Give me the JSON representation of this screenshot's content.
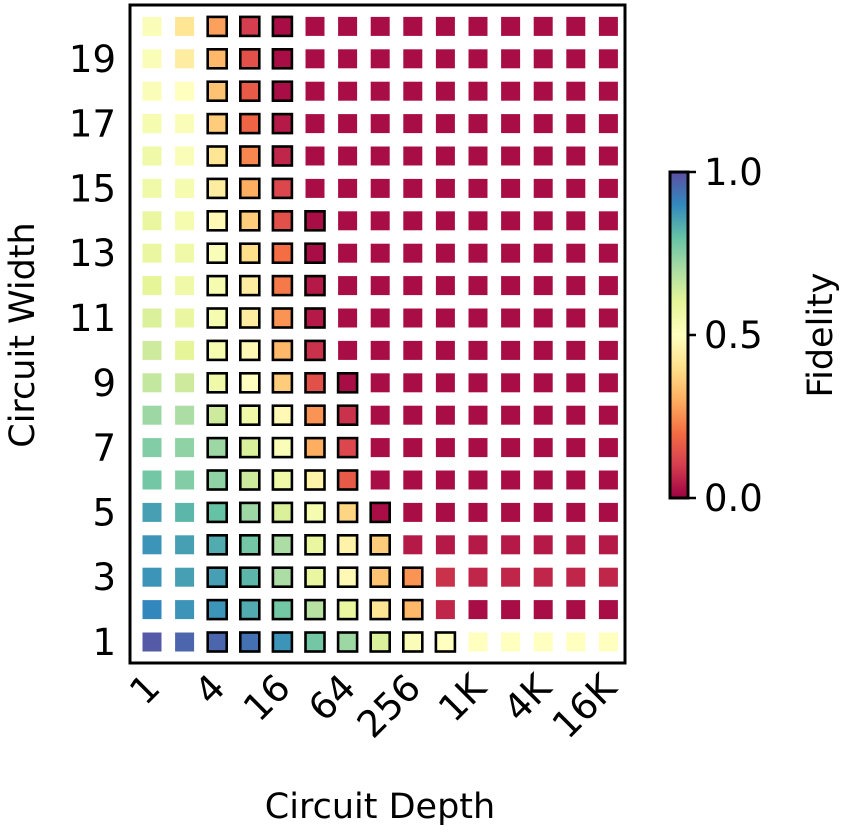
{
  "chart_data": {
    "type": "heatmap",
    "xlabel": "Circuit Depth",
    "ylabel": "Circuit Width",
    "colorbar_label": "Fidelity",
    "colorbar_ticks": [
      "0.0",
      "0.5",
      "1.0"
    ],
    "colorbar_range": [
      0,
      1
    ],
    "colormap": "Spectral",
    "x_tick_labels": [
      "1",
      "4",
      "16",
      "64",
      "256",
      "1K",
      "4K",
      "16K"
    ],
    "x_categories": [
      "1",
      "2",
      "4",
      "8",
      "16",
      "32",
      "64",
      "128",
      "256",
      "512",
      "1K",
      "2K",
      "4K",
      "8K",
      "16K"
    ],
    "y_tick_labels": [
      "1",
      "3",
      "5",
      "7",
      "9",
      "11",
      "13",
      "15",
      "17",
      "19"
    ],
    "y_categories": [
      "1",
      "2",
      "3",
      "4",
      "5",
      "6",
      "7",
      "8",
      "9",
      "10",
      "11",
      "12",
      "13",
      "14",
      "15",
      "16",
      "17",
      "18",
      "19",
      "20"
    ],
    "legend": "none",
    "values": [
      [
        0.98,
        0.96,
        0.96,
        0.94,
        0.88,
        0.78,
        0.72,
        0.62,
        0.52,
        0.5,
        0.5,
        0.5,
        0.5,
        0.5,
        0.5
      ],
      [
        0.9,
        0.88,
        0.88,
        0.84,
        0.78,
        0.68,
        0.58,
        0.42,
        0.32,
        0.06,
        0.02,
        0.02,
        0.02,
        0.02,
        0.02
      ],
      [
        0.88,
        0.86,
        0.86,
        0.82,
        0.7,
        0.58,
        0.48,
        0.34,
        0.26,
        0.08,
        0.06,
        0.06,
        0.06,
        0.06,
        0.06
      ],
      [
        0.88,
        0.86,
        0.84,
        0.78,
        0.7,
        0.58,
        0.46,
        0.36,
        0.04,
        0.04,
        0.04,
        0.04,
        0.04,
        0.04,
        0.04
      ],
      [
        0.86,
        0.82,
        0.8,
        0.72,
        0.62,
        0.54,
        0.38,
        0.02,
        0.02,
        0.02,
        0.02,
        0.02,
        0.02,
        0.02,
        0.02
      ],
      [
        0.78,
        0.76,
        0.74,
        0.64,
        0.56,
        0.46,
        0.16,
        0.02,
        0.02,
        0.02,
        0.02,
        0.02,
        0.02,
        0.02,
        0.02
      ],
      [
        0.76,
        0.74,
        0.72,
        0.62,
        0.52,
        0.3,
        0.12,
        0.02,
        0.02,
        0.02,
        0.02,
        0.02,
        0.02,
        0.02,
        0.02
      ],
      [
        0.72,
        0.7,
        0.64,
        0.56,
        0.48,
        0.26,
        0.08,
        0.02,
        0.02,
        0.02,
        0.02,
        0.02,
        0.02,
        0.02,
        0.02
      ],
      [
        0.66,
        0.64,
        0.56,
        0.5,
        0.36,
        0.14,
        0.02,
        0.02,
        0.02,
        0.02,
        0.02,
        0.02,
        0.02,
        0.02,
        0.02
      ],
      [
        0.64,
        0.6,
        0.54,
        0.48,
        0.32,
        0.08,
        0.02,
        0.02,
        0.02,
        0.02,
        0.02,
        0.02,
        0.02,
        0.02,
        0.02
      ],
      [
        0.62,
        0.58,
        0.54,
        0.44,
        0.26,
        0.04,
        0.02,
        0.02,
        0.02,
        0.02,
        0.02,
        0.02,
        0.02,
        0.02,
        0.02
      ],
      [
        0.6,
        0.56,
        0.54,
        0.44,
        0.22,
        0.04,
        0.02,
        0.02,
        0.02,
        0.02,
        0.02,
        0.02,
        0.02,
        0.02,
        0.02
      ],
      [
        0.58,
        0.56,
        0.52,
        0.4,
        0.2,
        0.02,
        0.02,
        0.02,
        0.02,
        0.02,
        0.02,
        0.02,
        0.02,
        0.02,
        0.02
      ],
      [
        0.58,
        0.54,
        0.48,
        0.36,
        0.14,
        0.02,
        0.02,
        0.02,
        0.02,
        0.02,
        0.02,
        0.02,
        0.02,
        0.02,
        0.02
      ],
      [
        0.56,
        0.54,
        0.44,
        0.3,
        0.12,
        0.02,
        0.02,
        0.02,
        0.02,
        0.02,
        0.02,
        0.02,
        0.02,
        0.02,
        0.02
      ],
      [
        0.56,
        0.52,
        0.42,
        0.24,
        0.06,
        0.02,
        0.02,
        0.02,
        0.02,
        0.02,
        0.02,
        0.02,
        0.02,
        0.02,
        0.02
      ],
      [
        0.54,
        0.52,
        0.36,
        0.18,
        0.04,
        0.02,
        0.02,
        0.02,
        0.02,
        0.02,
        0.02,
        0.02,
        0.02,
        0.02,
        0.02
      ],
      [
        0.52,
        0.5,
        0.34,
        0.16,
        0.02,
        0.02,
        0.02,
        0.02,
        0.02,
        0.02,
        0.02,
        0.02,
        0.02,
        0.02,
        0.02
      ],
      [
        0.52,
        0.44,
        0.32,
        0.14,
        0.02,
        0.02,
        0.02,
        0.02,
        0.02,
        0.02,
        0.02,
        0.02,
        0.02,
        0.02,
        0.02
      ],
      [
        0.52,
        0.42,
        0.28,
        0.1,
        0.02,
        0.02,
        0.02,
        0.02,
        0.02,
        0.02,
        0.02,
        0.02,
        0.02,
        0.02,
        0.02
      ]
    ],
    "outlined": [
      [
        2,
        3,
        4,
        5,
        6,
        7,
        8,
        9
      ],
      [
        2,
        3,
        4,
        5,
        6,
        7,
        8
      ],
      [
        2,
        3,
        4,
        5,
        6,
        7,
        8
      ],
      [
        2,
        3,
        4,
        5,
        6,
        7
      ],
      [
        2,
        3,
        4,
        5,
        6,
        7
      ],
      [
        2,
        3,
        4,
        5,
        6
      ],
      [
        2,
        3,
        4,
        5,
        6
      ],
      [
        2,
        3,
        4,
        5,
        6
      ],
      [
        2,
        3,
        4,
        5,
        6
      ],
      [
        2,
        3,
        4,
        5
      ],
      [
        2,
        3,
        4,
        5
      ],
      [
        2,
        3,
        4,
        5
      ],
      [
        2,
        3,
        4,
        5
      ],
      [
        2,
        3,
        4,
        5
      ],
      [
        2,
        3,
        4
      ],
      [
        2,
        3,
        4
      ],
      [
        2,
        3,
        4
      ],
      [
        2,
        3,
        4
      ],
      [
        2,
        3,
        4
      ],
      [
        2,
        3,
        4
      ]
    ]
  }
}
